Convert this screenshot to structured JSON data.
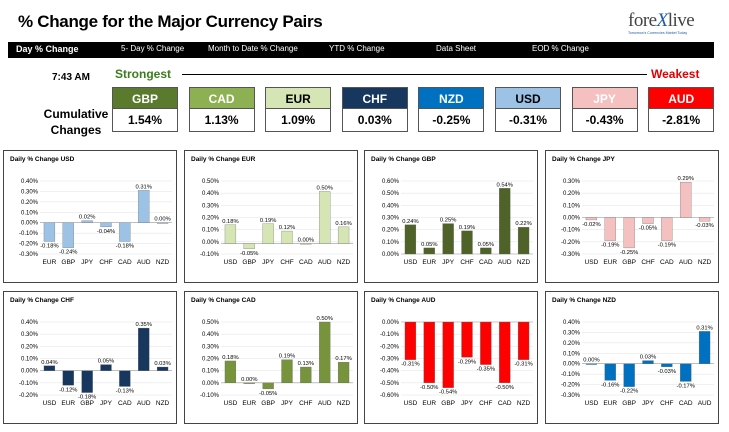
{
  "header": {
    "title": "% Change for the Major Currency Pairs",
    "logo_text_a": "fore",
    "logo_text_x": "X",
    "logo_text_b": "live",
    "logo_tagline": "Tomorrow's Currencies Market Today"
  },
  "nav": [
    {
      "label": "Day % Change",
      "active": true
    },
    {
      "label": "5- Day % Change",
      "active": false
    },
    {
      "label": "Month to Date % Change",
      "active": false
    },
    {
      "label": "YTD % Change",
      "active": false
    },
    {
      "label": "Data Sheet",
      "active": false
    },
    {
      "label": "EOD % Change",
      "active": false
    }
  ],
  "timestamp": "7:43 AM",
  "strongest_label": "Strongest",
  "weakest_label": "Weakest",
  "cumulative_label_1": "Cumulative",
  "cumulative_label_2": "Changes",
  "ranking": [
    {
      "code": "GBP",
      "value": "1.54%",
      "color": "#5a7a2e",
      "text": "#ffffff"
    },
    {
      "code": "CAD",
      "value": "1.13%",
      "color": "#8cb052",
      "text": "#ffffff"
    },
    {
      "code": "EUR",
      "value": "1.09%",
      "color": "#d5e6b4",
      "text": "#000000"
    },
    {
      "code": "CHF",
      "value": "0.03%",
      "color": "#17375e",
      "text": "#ffffff"
    },
    {
      "code": "NZD",
      "value": "-0.25%",
      "color": "#0070c0",
      "text": "#ffffff"
    },
    {
      "code": "USD",
      "value": "-0.31%",
      "color": "#9cc3e6",
      "text": "#000000"
    },
    {
      "code": "JPY",
      "value": "-0.43%",
      "color": "#f4c0c0",
      "text": "#ffffff"
    },
    {
      "code": "AUD",
      "value": "-2.81%",
      "color": "#ff0000",
      "text": "#ffffff"
    }
  ],
  "chart_data": [
    {
      "type": "bar",
      "title": "Daily % Change USD",
      "categories": [
        "EUR",
        "GBP",
        "JPY",
        "CHF",
        "CAD",
        "AUD",
        "NZD"
      ],
      "values": [
        -0.18,
        -0.24,
        0.02,
        -0.04,
        -0.18,
        0.31,
        0.0
      ],
      "labels": [
        "-0.18%",
        "-0.24%",
        "0.02%",
        "-0.04%",
        "-0.18%",
        "0.31%",
        "0.00%"
      ],
      "yticks": [
        "0.40%",
        "0.30%",
        "0.20%",
        "0.10%",
        "0.00%",
        "-0.10%",
        "-0.20%",
        "-0.30%"
      ],
      "ylim": [
        -0.3,
        0.4
      ],
      "color": "#9cc3e6"
    },
    {
      "type": "bar",
      "title": "Daily % Change EUR",
      "categories": [
        "USD",
        "GBP",
        "JPY",
        "CHF",
        "CAD",
        "AUD",
        "NZD"
      ],
      "values": [
        0.18,
        -0.05,
        0.19,
        0.12,
        0.0,
        0.5,
        0.16
      ],
      "labels": [
        "0.18%",
        "-0.05%",
        "0.19%",
        "0.12%",
        "0.00%",
        "0.50%",
        "0.16%"
      ],
      "yticks": [
        "0.50%",
        "0.40%",
        "0.30%",
        "0.20%",
        "0.10%",
        "0.00%",
        "-0.10%"
      ],
      "ylim": [
        -0.1,
        0.6
      ],
      "color": "#d5e6b4"
    },
    {
      "type": "bar",
      "title": "Daily % Change GBP",
      "categories": [
        "USD",
        "EUR",
        "JPY",
        "CHF",
        "CAD",
        "AUD",
        "NZD"
      ],
      "values": [
        0.24,
        0.05,
        0.25,
        0.19,
        0.05,
        0.54,
        0.22
      ],
      "labels": [
        "0.24%",
        "0.05%",
        "0.25%",
        "0.19%",
        "0.05%",
        "0.54%",
        "0.22%"
      ],
      "yticks": [
        "0.60%",
        "0.50%",
        "0.40%",
        "0.30%",
        "0.20%",
        "0.10%",
        "0.00%"
      ],
      "ylim": [
        0.0,
        0.6
      ],
      "color": "#4f6228"
    },
    {
      "type": "bar",
      "title": "Daily % Change JPY",
      "categories": [
        "USD",
        "EUR",
        "GBP",
        "CHF",
        "CAD",
        "AUD",
        "NZD"
      ],
      "values": [
        -0.02,
        -0.19,
        -0.25,
        -0.05,
        -0.19,
        0.29,
        -0.03
      ],
      "labels": [
        "-0.02%",
        "-0.19%",
        "-0.25%",
        "-0.05%",
        "-0.19%",
        "0.29%",
        "-0.03%"
      ],
      "yticks": [
        "0.30%",
        "0.20%",
        "0.10%",
        "0.00%",
        "-0.10%",
        "-0.20%",
        "-0.30%"
      ],
      "ylim": [
        -0.3,
        0.3
      ],
      "color": "#f4c0c0"
    },
    {
      "type": "bar",
      "title": "Daily % Change CHF",
      "categories": [
        "USD",
        "EUR",
        "GBP",
        "JPY",
        "CAD",
        "AUD",
        "NZD"
      ],
      "values": [
        0.04,
        -0.12,
        -0.18,
        0.05,
        -0.13,
        0.35,
        0.03
      ],
      "labels": [
        "0.04%",
        "-0.12%",
        "-0.18%",
        "0.05%",
        "-0.13%",
        "0.35%",
        "0.03%"
      ],
      "yticks": [
        "0.40%",
        "0.30%",
        "0.20%",
        "0.10%",
        "0.00%",
        "-0.10%",
        "-0.20%"
      ],
      "ylim": [
        -0.2,
        0.4
      ],
      "color": "#17375e"
    },
    {
      "type": "bar",
      "title": "Daily % Change CAD",
      "categories": [
        "USD",
        "EUR",
        "GBP",
        "JPY",
        "CHF",
        "AUD",
        "NZD"
      ],
      "values": [
        0.18,
        0.0,
        -0.05,
        0.19,
        0.13,
        0.5,
        0.17
      ],
      "labels": [
        "0.18%",
        "0.00%",
        "-0.05%",
        "0.19%",
        "0.13%",
        "0.50%",
        "0.17%"
      ],
      "yticks": [
        "0.50%",
        "0.40%",
        "0.30%",
        "0.20%",
        "0.10%",
        "0.00%",
        "-0.10%"
      ],
      "ylim": [
        -0.1,
        0.5
      ],
      "color": "#77933c"
    },
    {
      "type": "bar",
      "title": "Daily % Change AUD",
      "categories": [
        "USD",
        "EUR",
        "GBP",
        "JPY",
        "CHF",
        "CAD",
        "NZD"
      ],
      "values": [
        -0.31,
        -0.5,
        -0.54,
        -0.29,
        -0.35,
        -0.5,
        -0.31
      ],
      "labels": [
        "-0.31%",
        "-0.50%",
        "-0.54%",
        "-0.29%",
        "-0.35%",
        "-0.50%",
        "-0.31%"
      ],
      "yticks": [
        "0.00%",
        "-0.10%",
        "-0.20%",
        "-0.30%",
        "-0.40%",
        "-0.50%",
        "-0.60%"
      ],
      "ylim": [
        -0.6,
        0.0
      ],
      "color": "#ff0000"
    },
    {
      "type": "bar",
      "title": "Daily % Change NZD",
      "categories": [
        "USD",
        "EUR",
        "GBP",
        "JPY",
        "CHF",
        "CAD",
        "AUD"
      ],
      "values": [
        0.0,
        -0.16,
        -0.22,
        0.03,
        -0.03,
        -0.17,
        0.31
      ],
      "labels": [
        "0.00%",
        "-0.16%",
        "-0.22%",
        "0.03%",
        "-0.03%",
        "-0.17%",
        "0.31%"
      ],
      "yticks": [
        "0.40%",
        "0.30%",
        "0.20%",
        "0.10%",
        "0.00%",
        "-0.10%",
        "-0.20%",
        "-0.30%"
      ],
      "ylim": [
        -0.3,
        0.4
      ],
      "color": "#0070c0"
    }
  ]
}
